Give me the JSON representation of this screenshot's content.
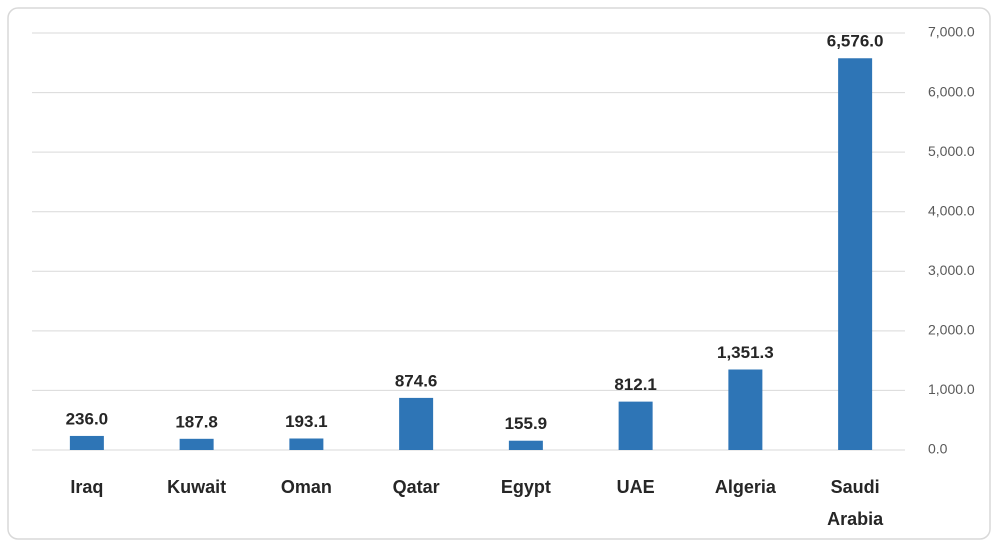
{
  "chart_data": {
    "type": "bar",
    "categories": [
      "Iraq",
      "Kuwait",
      "Oman",
      "Qatar",
      "Egypt",
      "UAE",
      "Algeria",
      "Saudi Arabia"
    ],
    "values": [
      236.0,
      187.8,
      193.1,
      874.6,
      155.9,
      812.1,
      1351.3,
      6576.0
    ],
    "value_labels": [
      "236.0",
      "187.8",
      "193.1",
      "874.6",
      "155.9",
      "812.1",
      "1,351.3",
      "6,576.0"
    ],
    "color": "#2e75b6",
    "ylim": [
      0,
      7000
    ],
    "yticks": [
      {
        "value": 0,
        "label": "0.0"
      },
      {
        "value": 1000,
        "label": "1,000.0"
      },
      {
        "value": 2000,
        "label": "2,000.0"
      },
      {
        "value": 3000,
        "label": "3,000.0"
      },
      {
        "value": 4000,
        "label": "4,000.0"
      },
      {
        "value": 5000,
        "label": "5,000.0"
      },
      {
        "value": 6000,
        "label": "6,000.0"
      },
      {
        "value": 7000,
        "label": "7,000.0"
      }
    ],
    "y_axis_side": "right",
    "grid": true
  }
}
